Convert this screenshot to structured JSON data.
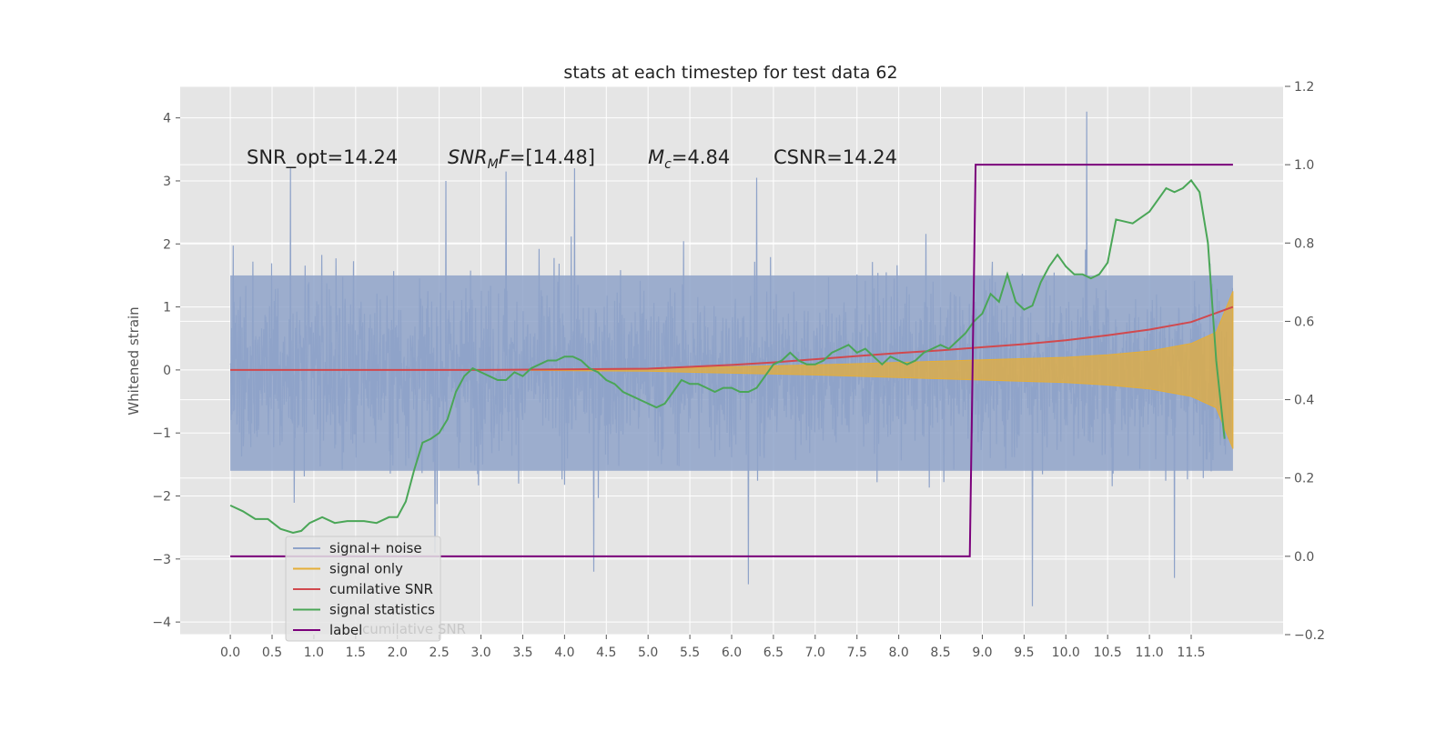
{
  "chart_data": {
    "type": "line",
    "title": "stats at each timestep for test data 62",
    "ylabel": "Whitened strain",
    "xlabel": "",
    "xlim": [
      -0.6,
      12.6
    ],
    "ylim": [
      -4.2,
      4.5
    ],
    "y2lim": [
      -0.2,
      1.2
    ],
    "grid": true,
    "x_ticks": [
      "0.0",
      "0.5",
      "1.0",
      "1.5",
      "2.0",
      "2.5",
      "3.0",
      "3.5",
      "4.0",
      "4.5",
      "5.0",
      "5.5",
      "6.0",
      "6.5",
      "7.0",
      "7.5",
      "8.0",
      "8.5",
      "9.0",
      "9.5",
      "10.0",
      "10.5",
      "11.0",
      "11.5"
    ],
    "y_ticks": [
      -4,
      -3,
      -2,
      -1,
      0,
      1,
      2,
      3,
      4
    ],
    "y_tick_labels": [
      "−4",
      "−3",
      "−2",
      "−1",
      "0",
      "1",
      "2",
      "3",
      "4"
    ],
    "y2_ticks": [
      -0.2,
      0.0,
      0.2,
      0.4,
      0.6,
      0.8,
      1.0,
      1.2
    ],
    "y2_tick_labels": [
      "−0.2",
      "0.0",
      "0.2",
      "0.4",
      "0.6",
      "0.8",
      "1.0",
      "1.2"
    ],
    "annotations": {
      "snr_opt": "SNR_opt=14.24",
      "snr_mf_base": "SNR",
      "snr_mf_sub": "M",
      "snr_mf_rest": "F=[14.48]",
      "mc_base": "M",
      "mc_sub": "c",
      "mc_rest": "=4.84",
      "csnr": "CSNR=14.24"
    },
    "legend_position": "lower-left",
    "legend_hidden_text": "cumilative SNR",
    "series": [
      {
        "name": "signal+ noise",
        "color": "#8fa3c9",
        "description_type": "noise",
        "x_range": [
          0.0,
          12.0
        ],
        "typical_range": [
          -1.6,
          1.5
        ],
        "peaks": [
          [
            0.72,
            3.2
          ],
          [
            2.58,
            3.0
          ],
          [
            3.3,
            3.15
          ],
          [
            4.12,
            3.2
          ],
          [
            6.3,
            3.05
          ],
          [
            10.25,
            4.1
          ],
          [
            2.45,
            -2.9
          ],
          [
            4.35,
            -3.2
          ],
          [
            6.2,
            -3.4
          ],
          [
            9.6,
            -3.75
          ],
          [
            11.3,
            -3.3
          ]
        ]
      },
      {
        "name": "signal only",
        "color": "#e5ae38",
        "description_type": "chirp_envelope",
        "x": [
          0.0,
          3.0,
          5.0,
          6.0,
          7.0,
          8.0,
          8.5,
          9.0,
          9.5,
          10.0,
          10.5,
          11.0,
          11.5,
          11.8,
          12.0
        ],
        "amplitude": [
          0.0,
          0.0,
          0.02,
          0.05,
          0.08,
          0.12,
          0.14,
          0.16,
          0.18,
          0.2,
          0.24,
          0.3,
          0.42,
          0.6,
          1.25
        ]
      },
      {
        "name": "cumilative SNR",
        "color": "#d1494e",
        "axis": "y",
        "x": [
          0.0,
          1.0,
          2.0,
          3.0,
          4.0,
          5.0,
          6.0,
          6.5,
          7.0,
          7.5,
          8.0,
          8.5,
          9.0,
          9.5,
          10.0,
          10.5,
          11.0,
          11.5,
          12.0
        ],
        "y": [
          0.0,
          0.0,
          0.0,
          0.0,
          0.01,
          0.02,
          0.08,
          0.12,
          0.17,
          0.22,
          0.27,
          0.31,
          0.36,
          0.41,
          0.47,
          0.55,
          0.64,
          0.76,
          1.0
        ]
      },
      {
        "name": "signal statistics",
        "color": "#4aa657",
        "axis": "y2",
        "x": [
          0.0,
          0.15,
          0.3,
          0.45,
          0.6,
          0.75,
          0.85,
          0.95,
          1.1,
          1.25,
          1.4,
          1.6,
          1.75,
          1.9,
          2.0,
          2.1,
          2.2,
          2.3,
          2.4,
          2.5,
          2.6,
          2.7,
          2.8,
          2.9,
          3.0,
          3.1,
          3.2,
          3.3,
          3.4,
          3.5,
          3.6,
          3.7,
          3.8,
          3.9,
          4.0,
          4.1,
          4.2,
          4.3,
          4.4,
          4.5,
          4.6,
          4.7,
          4.8,
          4.9,
          5.0,
          5.1,
          5.2,
          5.3,
          5.4,
          5.5,
          5.6,
          5.7,
          5.8,
          5.9,
          6.0,
          6.1,
          6.2,
          6.3,
          6.4,
          6.5,
          6.6,
          6.7,
          6.8,
          6.9,
          7.0,
          7.1,
          7.2,
          7.3,
          7.4,
          7.5,
          7.6,
          7.7,
          7.8,
          7.9,
          8.0,
          8.1,
          8.2,
          8.3,
          8.4,
          8.5,
          8.6,
          8.7,
          8.8,
          8.9,
          9.0,
          9.1,
          9.2,
          9.3,
          9.4,
          9.5,
          9.6,
          9.7,
          9.8,
          9.9,
          10.0,
          10.1,
          10.2,
          10.3,
          10.4,
          10.5,
          10.6,
          10.8,
          11.0,
          11.1,
          11.2,
          11.3,
          11.4,
          11.5,
          11.6,
          11.7,
          11.8,
          11.9
        ],
        "y": [
          0.13,
          0.115,
          0.095,
          0.095,
          0.07,
          0.06,
          0.065,
          0.085,
          0.1,
          0.085,
          0.09,
          0.09,
          0.085,
          0.1,
          0.1,
          0.14,
          0.22,
          0.29,
          0.3,
          0.315,
          0.35,
          0.42,
          0.46,
          0.48,
          0.47,
          0.46,
          0.45,
          0.45,
          0.47,
          0.46,
          0.48,
          0.49,
          0.5,
          0.5,
          0.51,
          0.51,
          0.5,
          0.48,
          0.47,
          0.45,
          0.44,
          0.42,
          0.41,
          0.4,
          0.39,
          0.38,
          0.39,
          0.42,
          0.45,
          0.44,
          0.44,
          0.43,
          0.42,
          0.43,
          0.43,
          0.42,
          0.42,
          0.43,
          0.46,
          0.49,
          0.5,
          0.52,
          0.5,
          0.49,
          0.49,
          0.5,
          0.52,
          0.53,
          0.54,
          0.52,
          0.53,
          0.51,
          0.49,
          0.51,
          0.5,
          0.49,
          0.5,
          0.52,
          0.53,
          0.54,
          0.53,
          0.55,
          0.57,
          0.6,
          0.62,
          0.67,
          0.65,
          0.72,
          0.65,
          0.63,
          0.64,
          0.7,
          0.74,
          0.77,
          0.74,
          0.72,
          0.72,
          0.71,
          0.72,
          0.75,
          0.86,
          0.85,
          0.88,
          0.91,
          0.94,
          0.93,
          0.94,
          0.96,
          0.93,
          0.8,
          0.5,
          0.3
        ]
      },
      {
        "name": "label",
        "color": "#7b007b",
        "axis": "y2",
        "x": [
          0.0,
          8.85,
          8.92,
          12.0
        ],
        "y": [
          0.0,
          0.0,
          1.0,
          1.0
        ]
      }
    ]
  }
}
